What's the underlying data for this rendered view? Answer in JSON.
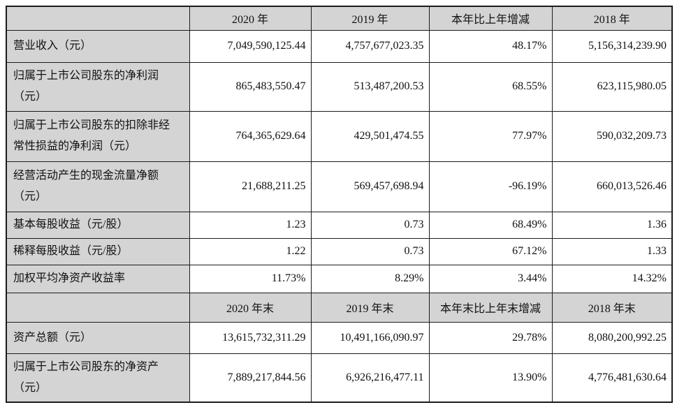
{
  "colors": {
    "header_bg": "#d4d4d4",
    "border": "#1b1b1b",
    "text": "#111111"
  },
  "table": {
    "sections": [
      {
        "header": {
          "corner": "",
          "cols": [
            "2020 年",
            "2019 年",
            "本年比上年增减",
            "2018 年"
          ]
        },
        "rows": [
          {
            "label": "营业收入（元）",
            "values": [
              "7,049,590,125.44",
              "4,757,677,023.35",
              "48.17%",
              "5,156,314,239.90"
            ]
          },
          {
            "label": "归属于上市公司股东的净利润（元）",
            "values": [
              "865,483,550.47",
              "513,487,200.53",
              "68.55%",
              "623,115,980.05"
            ]
          },
          {
            "label": "归属于上市公司股东的扣除非经常性损益的净利润（元）",
            "values": [
              "764,365,629.64",
              "429,501,474.55",
              "77.97%",
              "590,032,209.73"
            ]
          },
          {
            "label": "经营活动产生的现金流量净额（元）",
            "values": [
              "21,688,211.25",
              "569,457,698.94",
              "-96.19%",
              "660,013,526.46"
            ]
          },
          {
            "label": "基本每股收益（元/股）",
            "values": [
              "1.23",
              "0.73",
              "68.49%",
              "1.36"
            ]
          },
          {
            "label": "稀释每股收益（元/股）",
            "values": [
              "1.22",
              "0.73",
              "67.12%",
              "1.33"
            ]
          },
          {
            "label": "加权平均净资产收益率",
            "values": [
              "11.73%",
              "8.29%",
              "3.44%",
              "14.32%"
            ]
          }
        ]
      },
      {
        "header": {
          "corner": "",
          "cols": [
            "2020 年末",
            "2019 年末",
            "本年末比上年末增减",
            "2018 年末"
          ]
        },
        "rows": [
          {
            "label": "资产总额（元）",
            "values": [
              "13,615,732,311.29",
              "10,491,166,090.97",
              "29.78%",
              "8,080,200,992.25"
            ]
          },
          {
            "label": "归属于上市公司股东的净资产（元）",
            "values": [
              "7,889,217,844.56",
              "6,926,216,477.11",
              "13.90%",
              "4,776,481,630.64"
            ]
          }
        ]
      }
    ]
  }
}
